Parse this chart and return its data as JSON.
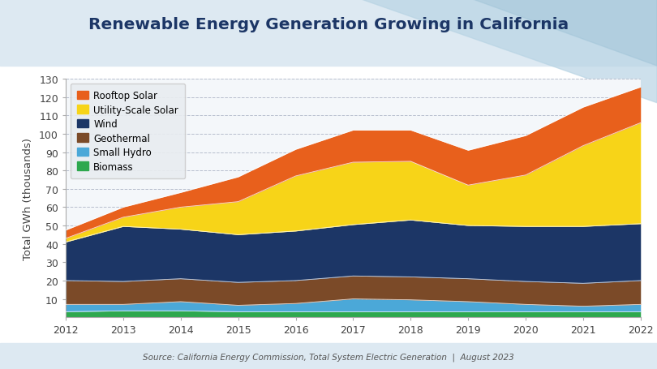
{
  "years": [
    2012,
    2013,
    2014,
    2015,
    2016,
    2017,
    2018,
    2019,
    2020,
    2021,
    2022
  ],
  "series": {
    "Biomass": [
      3.0,
      3.5,
      3.5,
      3.0,
      3.0,
      3.0,
      3.0,
      3.0,
      3.0,
      3.0,
      3.0
    ],
    "Small Hydro": [
      4.0,
      3.5,
      5.0,
      3.5,
      4.5,
      7.0,
      6.5,
      5.5,
      4.0,
      3.0,
      4.0
    ],
    "Geothermal": [
      13.0,
      12.5,
      12.5,
      12.5,
      12.5,
      12.5,
      12.5,
      12.5,
      12.5,
      12.5,
      13.0
    ],
    "Wind": [
      21.0,
      30.0,
      27.0,
      26.0,
      27.0,
      28.0,
      31.0,
      29.0,
      30.0,
      31.0,
      31.0
    ],
    "Utility-Scale Solar": [
      2.0,
      5.0,
      12.0,
      18.0,
      30.0,
      34.0,
      32.0,
      22.0,
      28.0,
      44.0,
      55.0
    ],
    "Rooftop Solar": [
      4.5,
      5.5,
      8.0,
      13.5,
      14.5,
      17.5,
      17.0,
      19.0,
      21.5,
      21.0,
      19.5
    ]
  },
  "colors": {
    "Biomass": "#2ea84e",
    "Small Hydro": "#4ba8d8",
    "Geothermal": "#7b4a28",
    "Wind": "#1c3666",
    "Utility-Scale Solar": "#f7d418",
    "Rooftop Solar": "#e8601c"
  },
  "title": "Renewable Energy Generation Growing in California",
  "ylabel": "Total GWh (thousands)",
  "source": "Source: California Energy Commission, Total System Electric Generation  |  August 2023",
  "ylim": [
    0,
    130
  ],
  "yticks": [
    10,
    20,
    30,
    40,
    50,
    60,
    70,
    80,
    90,
    100,
    110,
    120,
    130
  ],
  "figure_bg": "#c8d9e6",
  "chart_bg": "#f4f7fa",
  "header_bg_left": "#d6e6f0",
  "header_bg_right": "#e8f2f8",
  "legend_bg": "#e8ecf0"
}
